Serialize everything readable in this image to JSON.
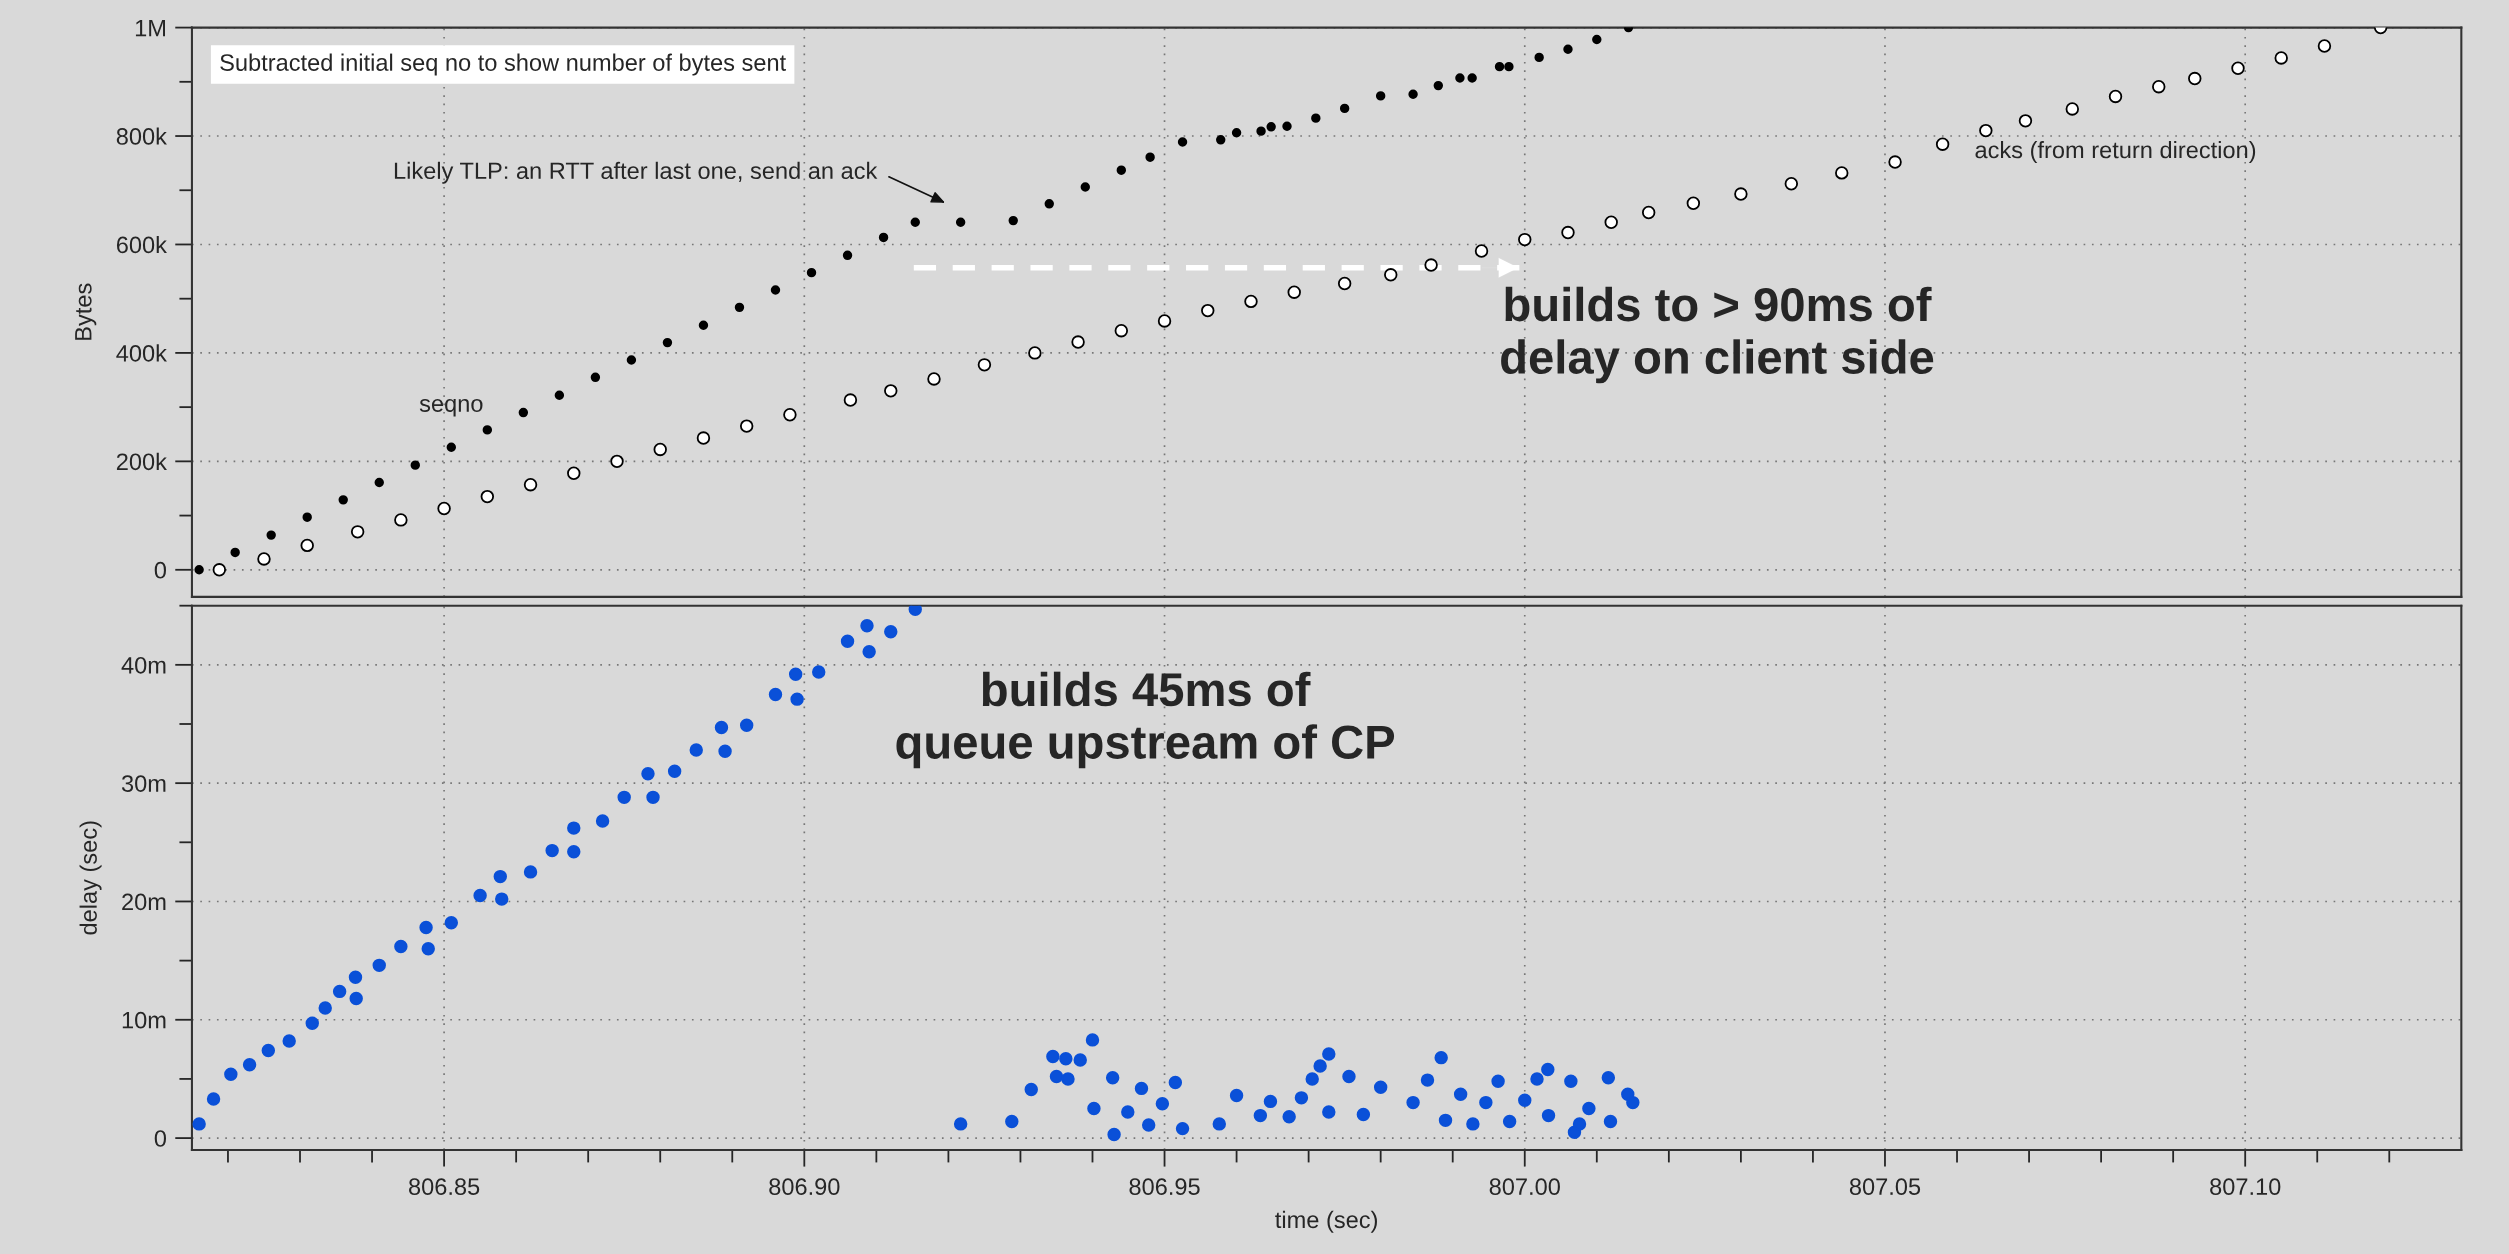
{
  "chart_data": [
    {
      "type": "scatter",
      "ylabel": "Bytes",
      "tick_labels": "y",
      "grid": true,
      "legend": false,
      "marker": "circle",
      "xlim": [
        806.815,
        807.13
      ],
      "ylim": [
        -50000,
        1000000
      ],
      "xticks": [
        806.85,
        806.9,
        806.95,
        807.0,
        807.05,
        807.1
      ],
      "yticks": [
        0,
        {
          "value": 100000,
          "label": null
        },
        {
          "value": 200000,
          "label": "200k"
        },
        {
          "value": 300000,
          "label": null
        },
        {
          "value": 400000,
          "label": "400k"
        },
        {
          "value": 500000,
          "label": null
        },
        {
          "value": 600000,
          "label": "600k"
        },
        {
          "value": 700000,
          "label": null
        },
        {
          "value": 800000,
          "label": "800k"
        },
        {
          "value": 900000,
          "label": null
        },
        {
          "value": 1000000,
          "label": "1M"
        }
      ],
      "series": [
        {
          "name": "seqno",
          "color": "#000000",
          "x": [
            806.816,
            806.821,
            806.826,
            806.831,
            806.836,
            806.841,
            806.846,
            806.851,
            806.856,
            806.861,
            806.866,
            806.871,
            806.876,
            806.881,
            806.886,
            806.891,
            806.896,
            806.901,
            806.906,
            806.911,
            806.9154,
            806.9217,
            806.929,
            806.934,
            806.939,
            806.944,
            806.948,
            806.9525,
            806.9578,
            806.96,
            806.9634,
            806.9648,
            806.967,
            806.971,
            806.975,
            806.98,
            806.9845,
            806.988,
            806.991,
            806.9927,
            806.9965,
            806.9978,
            807.002,
            807.006,
            807.01,
            807.0144
          ],
          "values": [
            0,
            32000,
            64000,
            97000,
            129000,
            161000,
            193000,
            226000,
            258000,
            290000,
            322000,
            355000,
            387000,
            419000,
            451000,
            484000,
            516000,
            548000,
            580000,
            613000,
            641000,
            641000,
            644000,
            675000,
            706000,
            737000,
            761000,
            789000,
            793000,
            806000,
            809000,
            817000,
            818000,
            833000,
            851000,
            874000,
            877000,
            893000,
            907000,
            907000,
            928000,
            928000,
            945000,
            960000,
            978000,
            1000000
          ]
        },
        {
          "name": "acks (from return direction)",
          "color": "#ffffff",
          "x": [
            806.8188,
            806.825,
            806.831,
            806.838,
            806.844,
            806.85,
            806.856,
            806.862,
            806.868,
            806.874,
            806.88,
            806.886,
            806.892,
            806.898,
            806.9064,
            806.912,
            806.918,
            806.925,
            806.932,
            806.938,
            806.944,
            806.95,
            806.956,
            806.962,
            806.968,
            806.975,
            806.9814,
            806.987,
            806.994,
            807.0,
            807.006,
            807.012,
            807.0172,
            807.0234,
            807.03,
            807.037,
            807.044,
            807.0514,
            807.058,
            807.064,
            807.0695,
            807.076,
            807.082,
            807.088,
            807.093,
            807.099,
            807.105,
            807.111,
            807.1188
          ],
          "values": [
            0,
            20000,
            45000,
            70000,
            92000,
            113000,
            135000,
            157000,
            178000,
            200000,
            222000,
            243000,
            265000,
            286000,
            313000,
            330000,
            352000,
            378000,
            400000,
            420000,
            441000,
            459000,
            478000,
            495000,
            512000,
            528000,
            544000,
            562000,
            588000,
            609000,
            622000,
            641000,
            659000,
            676000,
            693000,
            712000,
            732000,
            752000,
            785000,
            810000,
            828000,
            850000,
            873000,
            891000,
            906000,
            925000,
            944000,
            966000,
            1000000
          ]
        },
        {
          "type": "line",
          "color": "#ffffff",
          "line_style": "dashed",
          "marker": "none",
          "x": [
            806.9152,
            806.9995
          ],
          "values": [
            557000,
            557000
          ]
        }
      ],
      "annotations": [
        "Subtracted initial seq no to show number of bytes sent",
        "Likely TLP: an RTT after last one, send an ack",
        "builds to > 90ms of\ndelay on client side"
      ]
    },
    {
      "type": "scatter",
      "xlabel": "time (sec)",
      "ylabel": "delay (sec)",
      "grid": true,
      "legend": false,
      "marker": "circle",
      "xlim": [
        806.815,
        807.13
      ],
      "ylim": [
        -1,
        45
      ],
      "xticks": [
        {
          "value": 806.82,
          "label": null
        },
        {
          "value": 806.83,
          "label": null
        },
        {
          "value": 806.84,
          "label": null
        },
        806.85,
        {
          "value": 806.86,
          "label": null
        },
        {
          "value": 806.87,
          "label": null
        },
        {
          "value": 806.88,
          "label": null
        },
        {
          "value": 806.89,
          "label": null
        },
        {
          "value": 806.9,
          "label": "806.90"
        },
        {
          "value": 806.91,
          "label": null
        },
        {
          "value": 806.92,
          "label": null
        },
        {
          "value": 806.93,
          "label": null
        },
        {
          "value": 806.94,
          "label": null
        },
        806.95,
        {
          "value": 806.96,
          "label": null
        },
        {
          "value": 806.97,
          "label": null
        },
        {
          "value": 806.98,
          "label": null
        },
        {
          "value": 806.99,
          "label": null
        },
        {
          "value": 807.0,
          "label": "807.00"
        },
        {
          "value": 807.01,
          "label": null
        },
        {
          "value": 807.02,
          "label": null
        },
        {
          "value": 807.03,
          "label": null
        },
        {
          "value": 807.04,
          "label": null
        },
        807.05,
        {
          "value": 807.06,
          "label": null
        },
        {
          "value": 807.07,
          "label": null
        },
        {
          "value": 807.08,
          "label": null
        },
        {
          "value": 807.09,
          "label": null
        },
        {
          "value": 807.1,
          "label": "807.10"
        },
        {
          "value": 807.11,
          "label": null
        },
        {
          "value": 807.12,
          "label": null
        }
      ],
      "yticks": [
        0,
        {
          "value": 5,
          "label": null
        },
        {
          "value": 10,
          "label": "10m"
        },
        {
          "value": 15,
          "label": null
        },
        {
          "value": 20,
          "label": "20m"
        },
        {
          "value": 25,
          "label": null
        },
        {
          "value": 30,
          "label": "30m"
        },
        {
          "value": 35,
          "label": null
        },
        {
          "value": 40,
          "label": "40m"
        },
        {
          "value": 45,
          "label": null
        }
      ],
      "series": [
        {
          "color": "#0a50d8",
          "x": [
            806.816,
            806.818,
            806.8204,
            806.823,
            806.8256,
            806.8285,
            806.8317,
            806.8335,
            806.8355,
            806.8377,
            806.8378,
            806.841,
            806.844,
            806.8475,
            806.8478,
            806.851,
            806.855,
            806.8578,
            806.858,
            806.862,
            806.865,
            806.868,
            806.868,
            806.872,
            806.875,
            806.8783,
            806.879,
            806.882,
            806.885,
            806.8885,
            806.889,
            806.892,
            806.896,
            806.8988,
            806.899,
            806.902,
            806.906,
            806.9087,
            806.909,
            806.912,
            806.9154,
            806.9217,
            806.9288,
            806.9315,
            806.9345,
            806.935,
            806.9363,
            806.9366,
            806.9383,
            806.94,
            806.9402,
            806.9428,
            806.943,
            806.9449,
            806.9468,
            806.9478,
            806.9497,
            806.9515,
            806.9525,
            806.9576,
            806.96,
            806.9633,
            806.9647,
            806.9673,
            806.969,
            806.9705,
            806.9716,
            806.9728,
            806.9728,
            806.9756,
            806.9776,
            806.98,
            806.9845,
            806.9865,
            806.9884,
            806.989,
            806.9911,
            806.9928,
            806.9946,
            806.9963,
            806.9979,
            807.0,
            807.0017,
            807.0032,
            807.0033,
            807.0064,
            807.0069,
            807.0076,
            807.0089,
            807.0116,
            807.0119,
            807.0143,
            807.015
          ],
          "values": [
            1.2,
            3.3,
            5.4,
            6.2,
            7.4,
            8.2,
            9.7,
            11.0,
            12.4,
            13.6,
            11.8,
            14.6,
            16.2,
            17.8,
            16.0,
            18.2,
            20.5,
            22.1,
            20.2,
            22.5,
            24.3,
            26.2,
            24.2,
            26.8,
            28.8,
            30.8,
            28.8,
            31.0,
            32.8,
            34.7,
            32.7,
            34.9,
            37.5,
            39.2,
            37.1,
            39.4,
            42.0,
            43.3,
            41.1,
            42.8,
            44.7,
            1.2,
            1.4,
            4.1,
            6.9,
            5.2,
            6.7,
            5.0,
            6.6,
            8.3,
            2.5,
            5.1,
            0.3,
            2.2,
            4.2,
            1.1,
            2.9,
            4.7,
            0.8,
            1.2,
            3.6,
            1.9,
            3.1,
            1.8,
            3.4,
            5.0,
            6.1,
            7.1,
            2.2,
            5.2,
            2.0,
            4.3,
            3.0,
            4.9,
            6.8,
            1.5,
            3.7,
            1.2,
            3.0,
            4.8,
            1.4,
            3.2,
            5.0,
            5.8,
            1.9,
            4.8,
            0.5,
            1.2,
            2.5,
            5.1,
            1.4,
            3.7,
            3.0
          ]
        }
      ],
      "annotations": [
        "builds 45ms of\nqueue upstream of CP"
      ]
    }
  ]
}
